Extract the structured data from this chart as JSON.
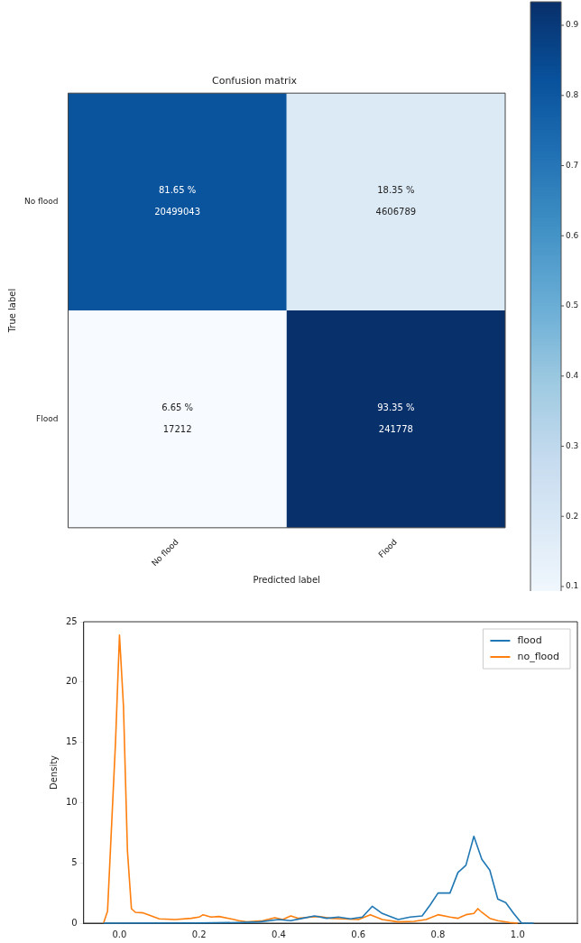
{
  "chart_data": [
    {
      "type": "heatmap",
      "title": "Confusion matrix",
      "xlabel": "Predicted label",
      "ylabel": "True label",
      "categories": [
        "No flood",
        "Flood"
      ],
      "y_categories": [
        "No flood",
        "Flood"
      ],
      "cells": [
        [
          0.8165,
          0.1835
        ],
        [
          0.0665,
          0.9335
        ]
      ],
      "cell_labels": [
        [
          "81.65 %\n20499043",
          "18.35 %\n4606789"
        ],
        [
          "6.65 %\n17212",
          "93.35 %\n241778"
        ]
      ],
      "clim": [
        0.0665,
        0.9335
      ],
      "cticks": [
        0.1,
        0.2,
        0.3,
        0.4,
        0.5,
        0.6,
        0.7,
        0.8,
        0.9
      ]
    },
    {
      "type": "line",
      "ylabel": "Density",
      "xlim": [
        -0.09,
        1.15
      ],
      "ylim": [
        0,
        25
      ],
      "xticks": [
        {
          "value": 0,
          "label": "0.0"
        },
        {
          "value": 0.2,
          "label": "0.2"
        },
        {
          "value": 0.4,
          "label": "0.4"
        },
        {
          "value": 0.6,
          "label": "0.6"
        },
        {
          "value": 0.8,
          "label": "0.8"
        },
        {
          "value": 1,
          "label": "1.0"
        }
      ],
      "yticks": [
        0,
        5,
        10,
        15,
        20,
        25
      ],
      "legend": "top right",
      "grid": false,
      "series": [
        {
          "name": "flood",
          "color": "#1f77b4",
          "x": [
            -0.04,
            0.2,
            0.3,
            0.35,
            0.4,
            0.43,
            0.46,
            0.49,
            0.52,
            0.55,
            0.58,
            0.61,
            0.635,
            0.66,
            0.7,
            0.73,
            0.76,
            0.78,
            0.8,
            0.83,
            0.85,
            0.87,
            0.89,
            0.91,
            0.93,
            0.95,
            0.97,
            0.99,
            1.01,
            1.04
          ],
          "values": [
            0,
            0.02,
            0.05,
            0.1,
            0.3,
            0.2,
            0.4,
            0.6,
            0.4,
            0.5,
            0.35,
            0.5,
            1.4,
            0.8,
            0.3,
            0.5,
            0.6,
            1.5,
            2.5,
            2.5,
            4.2,
            4.8,
            7.2,
            5.3,
            4.4,
            2.0,
            1.7,
            0.8,
            0,
            0
          ]
        },
        {
          "name": "no_flood",
          "color": "#ff7f0e",
          "x": [
            -0.04,
            -0.03,
            -0.01,
            0.0,
            0.01,
            0.02,
            0.03,
            0.04,
            0.06,
            0.08,
            0.1,
            0.14,
            0.18,
            0.2,
            0.21,
            0.23,
            0.25,
            0.28,
            0.3,
            0.32,
            0.36,
            0.39,
            0.41,
            0.43,
            0.45,
            0.48,
            0.5,
            0.53,
            0.56,
            0.6,
            0.63,
            0.66,
            0.7,
            0.74,
            0.77,
            0.8,
            0.83,
            0.85,
            0.87,
            0.89,
            0.9,
            0.91,
            0.93,
            0.95,
            0.98,
            1.0
          ],
          "values": [
            0,
            1,
            15,
            23.9,
            18,
            6,
            1.2,
            0.9,
            0.85,
            0.6,
            0.35,
            0.3,
            0.4,
            0.5,
            0.7,
            0.5,
            0.55,
            0.35,
            0.2,
            0.1,
            0.2,
            0.45,
            0.3,
            0.6,
            0.4,
            0.5,
            0.55,
            0.4,
            0.35,
            0.3,
            0.7,
            0.3,
            0.1,
            0.15,
            0.3,
            0.7,
            0.5,
            0.4,
            0.7,
            0.8,
            1.2,
            0.9,
            0.4,
            0.2,
            0.05,
            0
          ]
        }
      ]
    }
  ]
}
